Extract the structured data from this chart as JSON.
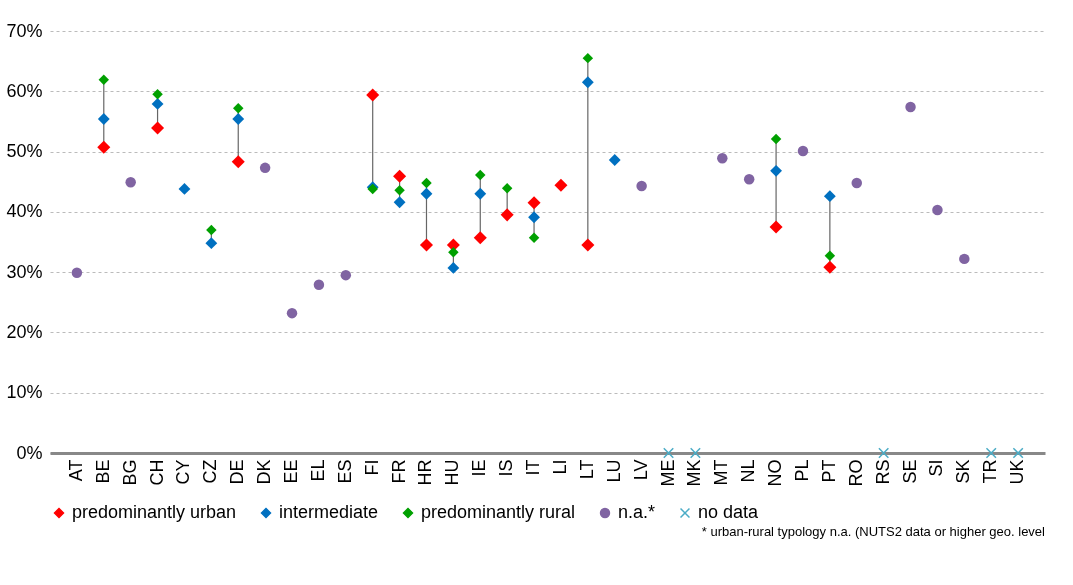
{
  "chart_data": {
    "type": "scatter",
    "categories": [
      "AT",
      "BE",
      "BG",
      "CH",
      "CY",
      "CZ",
      "DE",
      "DK",
      "EE",
      "EL",
      "ES",
      "FI",
      "FR",
      "HR",
      "HU",
      "IE",
      "IS",
      "IT",
      "LI",
      "LT",
      "LU",
      "LV",
      "ME",
      "MK",
      "MT",
      "NL",
      "NO",
      "PL",
      "PT",
      "RO",
      "RS",
      "SE",
      "SI",
      "SK",
      "TR",
      "UK"
    ],
    "series": [
      {
        "name": "predominantly urban",
        "color": "#ff0000",
        "marker": "diamond",
        "values": [
          null,
          50.7,
          null,
          53.9,
          null,
          null,
          48.3,
          null,
          null,
          null,
          null,
          59.4,
          45.9,
          34.5,
          34.5,
          35.7,
          39.5,
          41.5,
          44.4,
          34.5,
          null,
          null,
          null,
          null,
          null,
          null,
          37.5,
          null,
          30.8,
          null,
          null,
          null,
          null,
          null,
          null,
          null
        ]
      },
      {
        "name": "intermediate",
        "color": "#0070c0",
        "marker": "diamond",
        "values": [
          null,
          55.4,
          null,
          57.9,
          43.8,
          34.8,
          55.4,
          null,
          null,
          null,
          null,
          44.1,
          41.6,
          43.0,
          30.7,
          43.0,
          null,
          39.1,
          null,
          61.5,
          48.6,
          null,
          null,
          null,
          null,
          null,
          46.8,
          null,
          42.6,
          null,
          null,
          null,
          null,
          null,
          null,
          null
        ]
      },
      {
        "name": "predominantly rural",
        "color": "#00a000",
        "marker": "diamond",
        "values": [
          null,
          61.9,
          null,
          59.5,
          null,
          37.0,
          57.2,
          null,
          null,
          null,
          null,
          43.8,
          43.6,
          44.8,
          33.3,
          46.1,
          43.9,
          35.7,
          null,
          65.5,
          null,
          null,
          null,
          null,
          null,
          null,
          52.1,
          null,
          32.7,
          null,
          null,
          null,
          null,
          null,
          null,
          null
        ]
      },
      {
        "name": "n.a.*",
        "color": "#8064a2",
        "marker": "circle",
        "values": [
          29.9,
          null,
          44.9,
          null,
          null,
          null,
          null,
          47.3,
          23.2,
          27.9,
          29.5,
          null,
          null,
          null,
          null,
          null,
          null,
          null,
          null,
          null,
          null,
          44.3,
          null,
          null,
          48.9,
          45.4,
          null,
          50.1,
          null,
          44.8,
          null,
          57.4,
          40.3,
          32.2,
          null,
          null
        ]
      },
      {
        "name": "no data",
        "color": "#4bacc6",
        "marker": "cross",
        "values": [
          null,
          null,
          null,
          null,
          null,
          null,
          null,
          null,
          null,
          null,
          null,
          null,
          null,
          null,
          null,
          null,
          null,
          null,
          null,
          null,
          null,
          null,
          0,
          0,
          null,
          null,
          null,
          null,
          null,
          null,
          0,
          null,
          null,
          null,
          0,
          0
        ]
      }
    ],
    "ylim": [
      0,
      70
    ],
    "yticks": [
      {
        "value": 0,
        "label": "0%"
      },
      {
        "value": 10,
        "label": "10%"
      },
      {
        "value": 20,
        "label": "20%"
      },
      {
        "value": 30,
        "label": "30%"
      },
      {
        "value": 40,
        "label": "40%"
      },
      {
        "value": 50,
        "label": "50%"
      },
      {
        "value": 60,
        "label": "60%"
      },
      {
        "value": 70,
        "label": "70%"
      }
    ],
    "grid": "y",
    "legend": "bottom",
    "annotations": [
      "* urban-rural typology  n.a. (NUTS2 data or higher geo. level"
    ]
  }
}
